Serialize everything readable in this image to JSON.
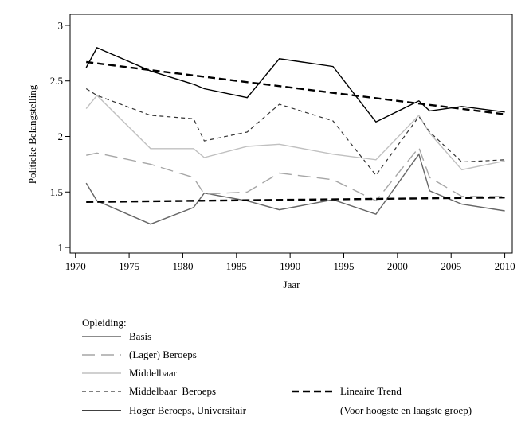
{
  "chart_data": {
    "type": "line",
    "xlabel": "Jaar",
    "ylabel": "Politieke Belangstelling",
    "xlim": [
      1969.5,
      2010.7
    ],
    "ylim": [
      0.95,
      3.1
    ],
    "x_ticks": [
      1970,
      1975,
      1980,
      1985,
      1990,
      1995,
      2000,
      2005,
      2010
    ],
    "y_ticks": [
      1,
      1.5,
      2,
      2.5,
      3
    ],
    "legend_title": "Opleiding:",
    "series": [
      {
        "name": "Basis",
        "style": "solid",
        "color": "#666666",
        "width": 1.4,
        "x": [
          1971,
          1972,
          1977,
          1981,
          1982,
          1986,
          1989,
          1994,
          1998,
          2002,
          2003,
          2006,
          2010
        ],
        "values": [
          1.58,
          1.42,
          1.21,
          1.36,
          1.49,
          1.42,
          1.34,
          1.43,
          1.3,
          1.84,
          1.51,
          1.39,
          1.33
        ]
      },
      {
        "name": "(Lager) Beroeps",
        "style": "longdash",
        "color": "#a6a6a6",
        "width": 1.4,
        "x": [
          1971,
          1972,
          1977,
          1981,
          1982,
          1986,
          1989,
          1994,
          1998,
          2002,
          2003,
          2006,
          2010
        ],
        "values": [
          1.83,
          1.85,
          1.75,
          1.63,
          1.48,
          1.5,
          1.67,
          1.61,
          1.42,
          1.9,
          1.63,
          1.46,
          1.46
        ]
      },
      {
        "name": "Middelbaar",
        "style": "solid",
        "color": "#c0c0c0",
        "width": 1.4,
        "x": [
          1971,
          1972,
          1977,
          1981,
          1982,
          1986,
          1989,
          1994,
          1998,
          2002,
          2003,
          2006,
          2010
        ],
        "values": [
          2.25,
          2.37,
          1.89,
          1.89,
          1.81,
          1.91,
          1.93,
          1.84,
          1.79,
          2.19,
          2.03,
          1.7,
          1.78
        ]
      },
      {
        "name": "Middelbaar  Beroeps",
        "style": "shortdash",
        "color": "#333333",
        "width": 1.2,
        "x": [
          1971,
          1972,
          1977,
          1981,
          1982,
          1986,
          1989,
          1994,
          1998,
          2002,
          2003,
          2006,
          2010
        ],
        "values": [
          2.43,
          2.37,
          2.19,
          2.16,
          1.96,
          2.04,
          2.29,
          2.14,
          1.65,
          2.18,
          2.04,
          1.77,
          1.79
        ]
      },
      {
        "name": "Hoger Beroeps, Universitair",
        "style": "solid",
        "color": "#000000",
        "width": 1.4,
        "x": [
          1971,
          1972,
          1977,
          1981,
          1982,
          1986,
          1989,
          1994,
          1998,
          2002,
          2003,
          2006,
          2010
        ],
        "values": [
          2.62,
          2.8,
          2.59,
          2.47,
          2.43,
          2.35,
          2.7,
          2.63,
          2.13,
          2.32,
          2.23,
          2.27,
          2.22
        ]
      }
    ],
    "trend_lines": [
      {
        "name": "trend-hoog",
        "style": "bolddash",
        "color": "#000000",
        "x": [
          1971,
          2010
        ],
        "values": [
          2.67,
          2.2
        ]
      },
      {
        "name": "trend-laag",
        "style": "bolddash",
        "color": "#000000",
        "x": [
          1971,
          2010
        ],
        "values": [
          1.41,
          1.45
        ]
      }
    ],
    "trend_legend": {
      "label": "Lineaire Trend",
      "note": "(Voor hoogste en laagste groep)"
    }
  }
}
